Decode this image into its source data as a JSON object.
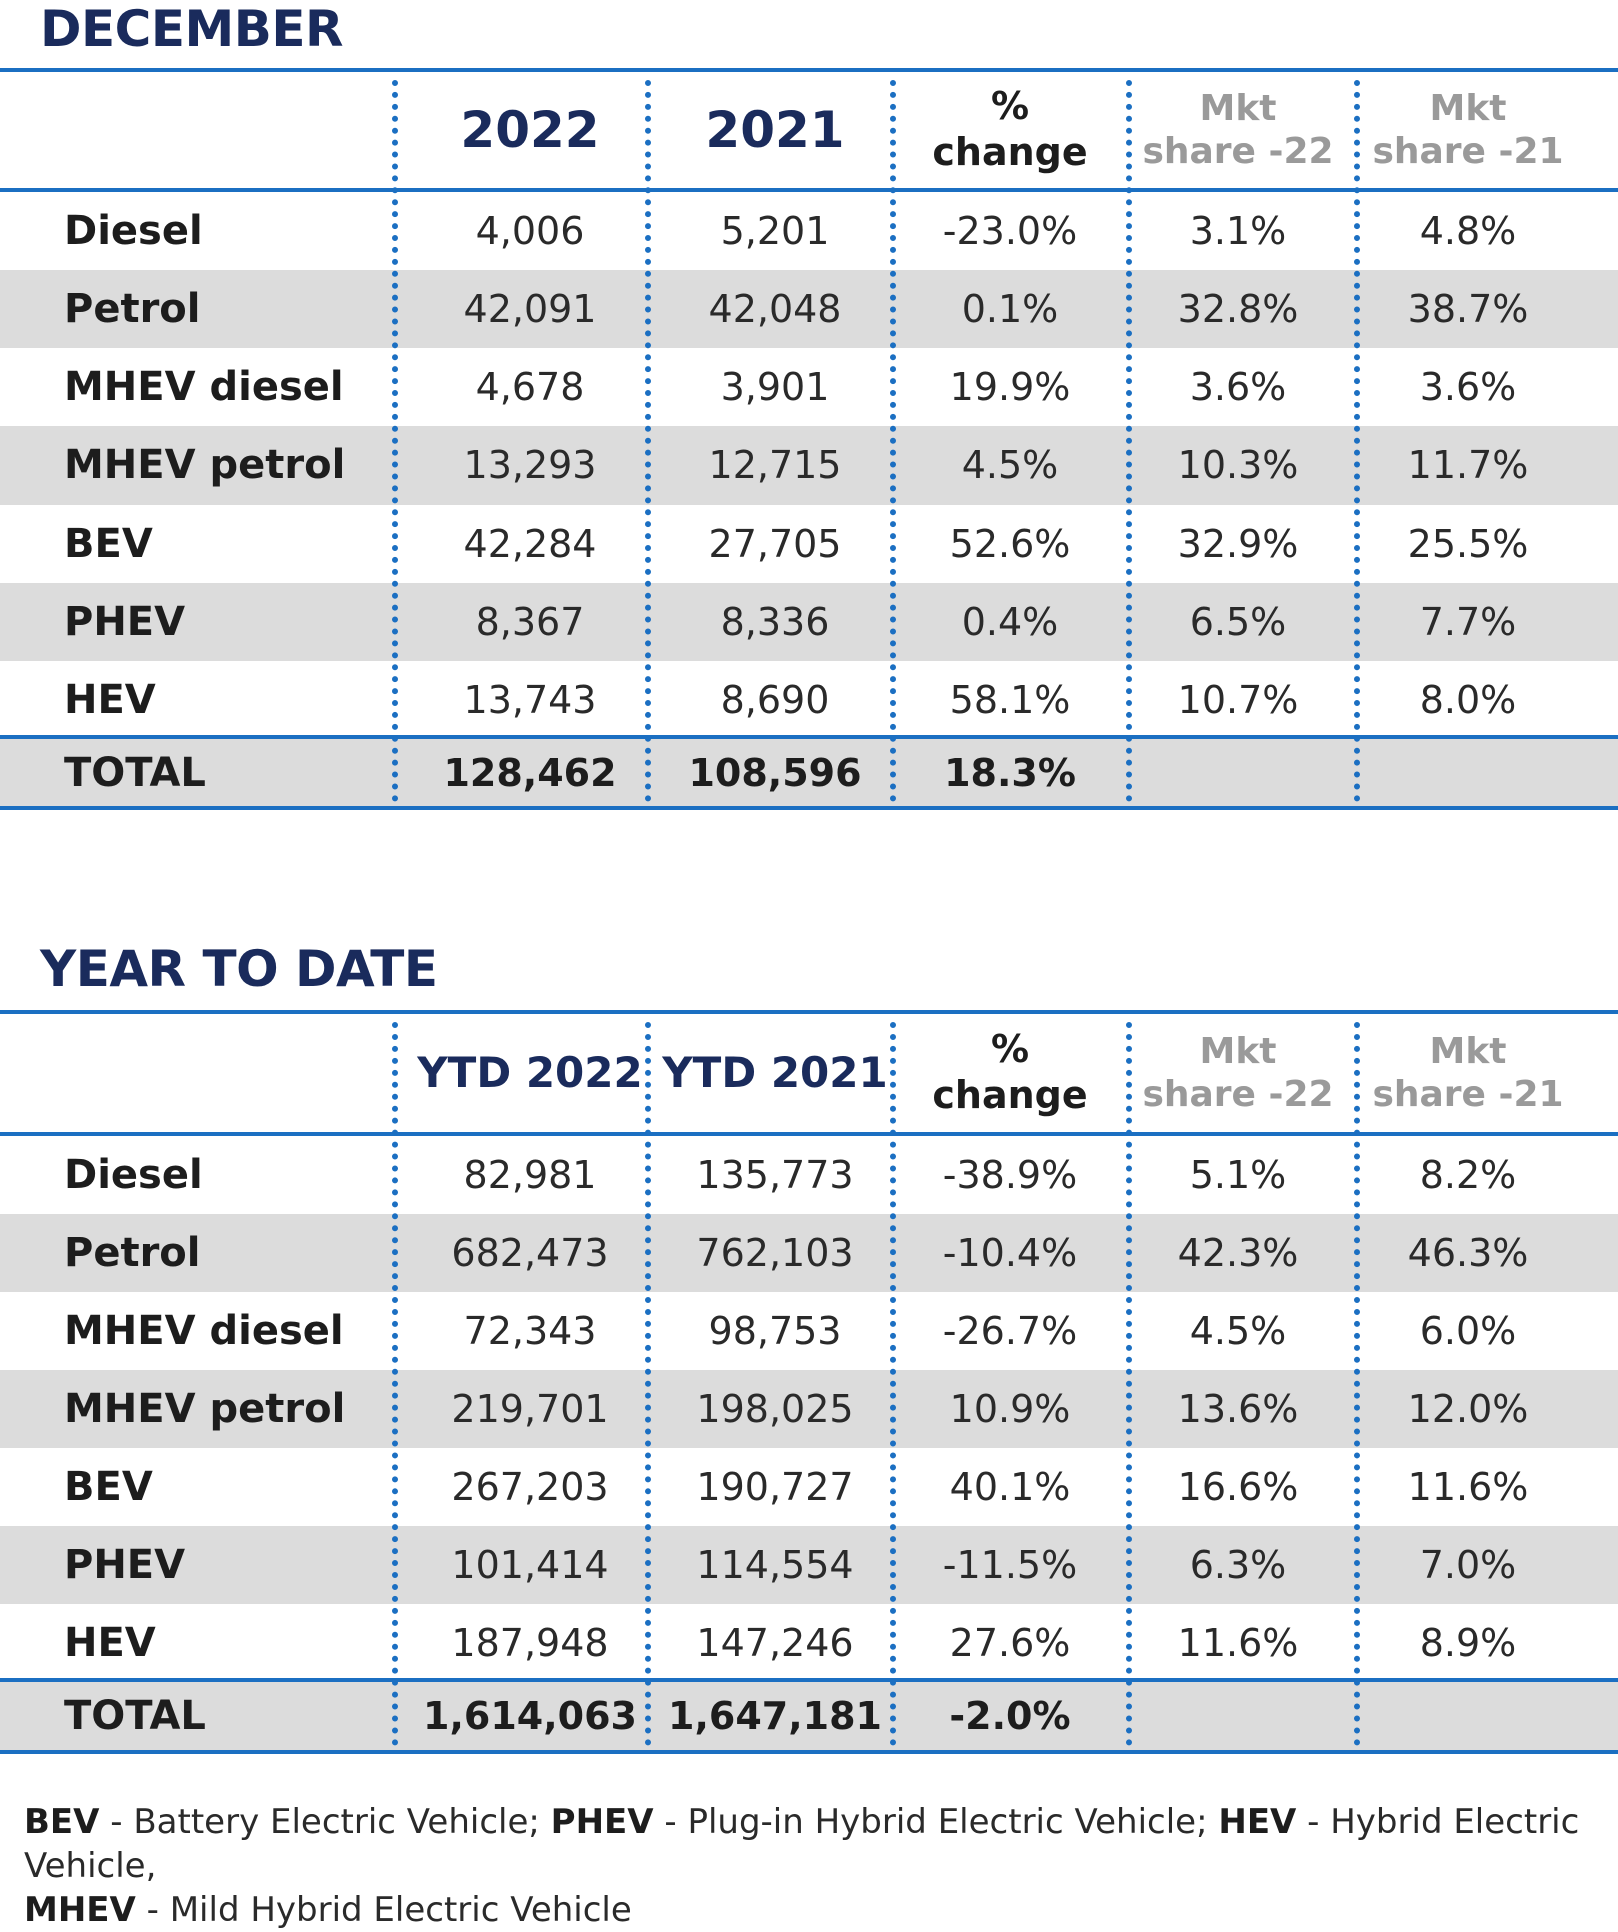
{
  "sections": [
    {
      "title": "DECEMBER",
      "headers": {
        "col1": "2022",
        "col2": "2021",
        "pct_line1": "%",
        "pct_line2": "change",
        "mkt22_line1": "Mkt",
        "mkt22_line2": "share -22",
        "mkt21_line1": "Mkt",
        "mkt21_line2": "share -21"
      },
      "rows": [
        {
          "label": "Diesel",
          "v1": "4,006",
          "v2": "5,201",
          "pct": "-23.0%",
          "m22": "3.1%",
          "m21": "4.8%"
        },
        {
          "label": "Petrol",
          "v1": "42,091",
          "v2": "42,048",
          "pct": "0.1%",
          "m22": "32.8%",
          "m21": "38.7%"
        },
        {
          "label": "MHEV diesel",
          "v1": "4,678",
          "v2": "3,901",
          "pct": "19.9%",
          "m22": "3.6%",
          "m21": "3.6%"
        },
        {
          "label": "MHEV petrol",
          "v1": "13,293",
          "v2": "12,715",
          "pct": "4.5%",
          "m22": "10.3%",
          "m21": "11.7%"
        },
        {
          "label": "BEV",
          "v1": "42,284",
          "v2": "27,705",
          "pct": "52.6%",
          "m22": "32.9%",
          "m21": "25.5%"
        },
        {
          "label": "PHEV",
          "v1": "8,367",
          "v2": "8,336",
          "pct": "0.4%",
          "m22": "6.5%",
          "m21": "7.7%"
        },
        {
          "label": "HEV",
          "v1": "13,743",
          "v2": "8,690",
          "pct": "58.1%",
          "m22": "10.7%",
          "m21": "8.0%"
        }
      ],
      "total": {
        "label": "TOTAL",
        "v1": "128,462",
        "v2": "108,596",
        "pct": "18.3%"
      }
    },
    {
      "title": "YEAR TO DATE",
      "headers": {
        "col1": "YTD 2022",
        "col2": "YTD 2021",
        "pct_line1": "%",
        "pct_line2": "change",
        "mkt22_line1": "Mkt",
        "mkt22_line2": "share -22",
        "mkt21_line1": "Mkt",
        "mkt21_line2": "share -21"
      },
      "rows": [
        {
          "label": "Diesel",
          "v1": "82,981",
          "v2": "135,773",
          "pct": "-38.9%",
          "m22": "5.1%",
          "m21": "8.2%"
        },
        {
          "label": "Petrol",
          "v1": "682,473",
          "v2": "762,103",
          "pct": "-10.4%",
          "m22": "42.3%",
          "m21": "46.3%"
        },
        {
          "label": "MHEV diesel",
          "v1": "72,343",
          "v2": "98,753",
          "pct": "-26.7%",
          "m22": "4.5%",
          "m21": "6.0%"
        },
        {
          "label": "MHEV petrol",
          "v1": "219,701",
          "v2": "198,025",
          "pct": "10.9%",
          "m22": "13.6%",
          "m21": "12.0%"
        },
        {
          "label": "BEV",
          "v1": "267,203",
          "v2": "190,727",
          "pct": "40.1%",
          "m22": "16.6%",
          "m21": "11.6%"
        },
        {
          "label": "PHEV",
          "v1": "101,414",
          "v2": "114,554",
          "pct": "-11.5%",
          "m22": "6.3%",
          "m21": "7.0%"
        },
        {
          "label": "HEV",
          "v1": "187,948",
          "v2": "147,246",
          "pct": "27.6%",
          "m22": "11.6%",
          "m21": "8.9%"
        }
      ],
      "total": {
        "label": "TOTAL",
        "v1": "1,614,063",
        "v2": "1,647,181",
        "pct": "-2.0%"
      }
    }
  ],
  "footnote": {
    "bev_abbr": "BEV",
    "bev_text": " - Battery Electric Vehicle; ",
    "phev_abbr": "PHEV",
    "phev_text": " - Plug-in Hybrid Electric Vehicle; ",
    "hev_abbr": "HEV",
    "hev_text": " - Hybrid Electric Vehicle,",
    "mhev_abbr": "MHEV",
    "mhev_text": " - Mild Hybrid Electric Vehicle"
  }
}
